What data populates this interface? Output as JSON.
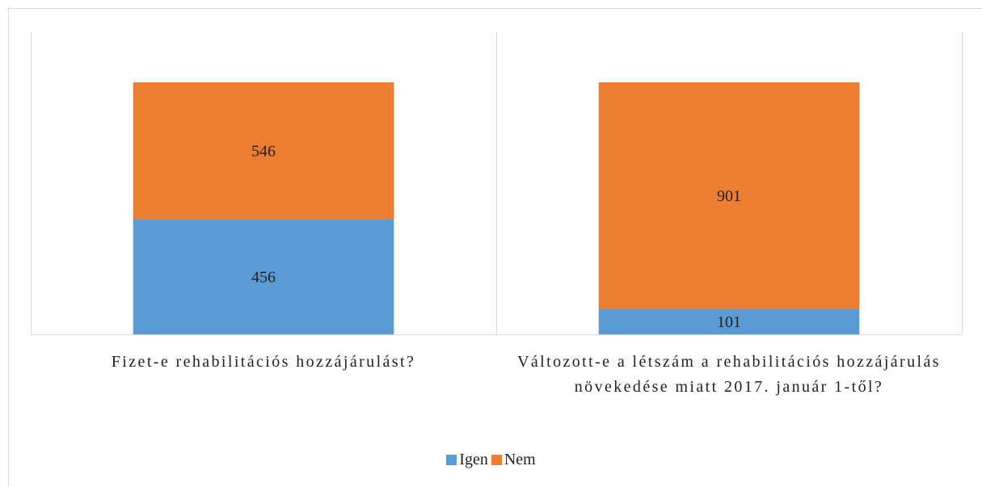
{
  "chart_data": {
    "type": "stacked_bar",
    "categories": [
      "Fizet-e rehabilitációs hozzájárulást?",
      "Változott-e a létszám a rehabilitációs hozzájárulás növekedése miatt 2017. január 1-től?"
    ],
    "series": [
      {
        "name": "Igen",
        "color": "#5b9bd5",
        "values": [
          456,
          101
        ]
      },
      {
        "name": "Nem",
        "color": "#ed7d31",
        "values": [
          546,
          901
        ]
      }
    ],
    "legend": "bottom"
  }
}
